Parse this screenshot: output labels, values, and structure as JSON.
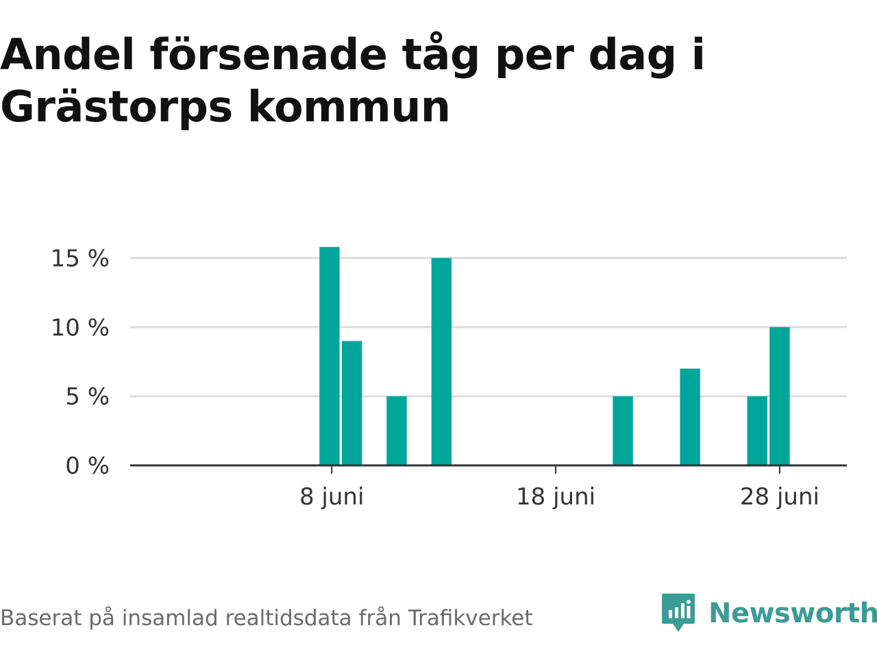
{
  "chart_data": {
    "type": "bar",
    "title": "Andel försenade tåg per dag i Grästorps kommun",
    "xlabel": "",
    "ylabel": "",
    "ylim": [
      0,
      17.5
    ],
    "yticks": [
      0,
      5,
      10,
      15
    ],
    "ytick_labels": [
      "0 %",
      "5 %",
      "10 %",
      "15 %"
    ],
    "x_domain": [
      -1,
      31
    ],
    "xticks": [
      {
        "day": 8,
        "label": "8 juni"
      },
      {
        "day": 18,
        "label": "18 juni"
      },
      {
        "day": 28,
        "label": "28 juni"
      }
    ],
    "series": [
      {
        "name": "Andel försenade tåg",
        "points": [
          {
            "day": 7.9,
            "value": 15.8
          },
          {
            "day": 8.9,
            "value": 9.0
          },
          {
            "day": 10.9,
            "value": 5.0
          },
          {
            "day": 12.9,
            "value": 15.0
          },
          {
            "day": 21.0,
            "value": 5.0
          },
          {
            "day": 24.0,
            "value": 7.0
          },
          {
            "day": 27.0,
            "value": 5.0
          },
          {
            "day": 28.0,
            "value": 10.0
          }
        ]
      }
    ],
    "colors": {
      "bar": "#00a69a",
      "grid": "#dddddd",
      "axis": "#333333"
    }
  },
  "source": "Baserat på insamlad realtidsdata från Trafikverket",
  "brand": {
    "name": "Newsworthy",
    "icon": "newsworthy-logo-icon",
    "color": "#3a9c94"
  }
}
